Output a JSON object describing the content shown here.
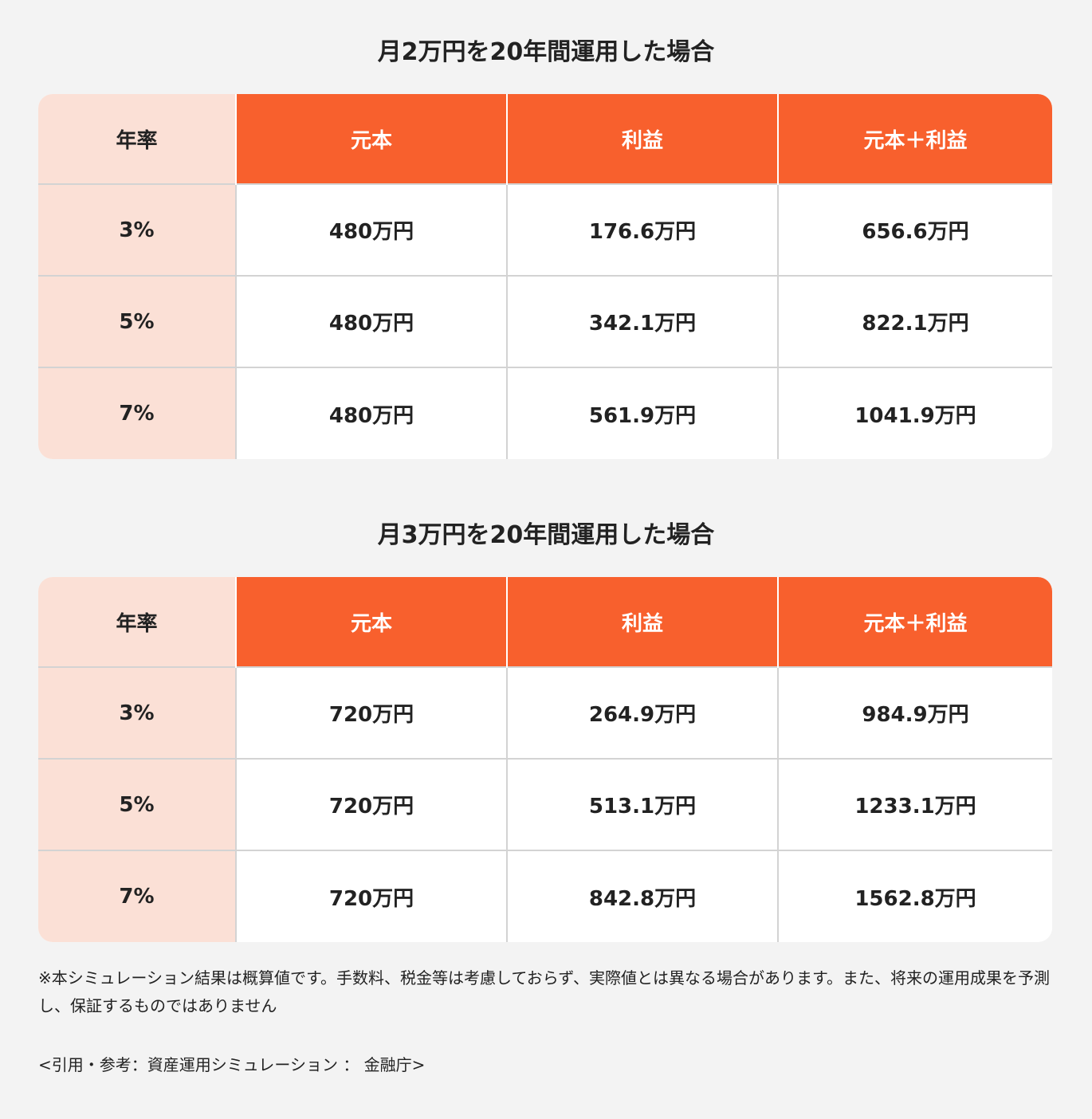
{
  "tables": [
    {
      "title": "月2万円を20年間運用した場合",
      "headers": [
        "年率",
        "元本",
        "利益",
        "元本＋利益"
      ],
      "rows": [
        [
          "3%",
          "480万円",
          "176.6万円",
          "656.6万円"
        ],
        [
          "5%",
          "480万円",
          "342.1万円",
          "822.1万円"
        ],
        [
          "7%",
          "480万円",
          "561.9万円",
          "1041.9万円"
        ]
      ]
    },
    {
      "title": "月3万円を20年間運用した場合",
      "headers": [
        "年率",
        "元本",
        "利益",
        "元本＋利益"
      ],
      "rows": [
        [
          "3%",
          "720万円",
          "264.9万円",
          "984.9万円"
        ],
        [
          "5%",
          "720万円",
          "513.1万円",
          "1233.1万円"
        ],
        [
          "7%",
          "720万円",
          "842.8万円",
          "1562.8万円"
        ]
      ]
    }
  ],
  "note": "※本シミュレーション結果は概算値です。手数料、税金等は考慮しておらず、実際値とは異なる場合があります。また、将来の運用成果を予測し、保証するものではありません",
  "source": "<引用・参考：資産運用シミュレーション ： 金融庁>",
  "colors": {
    "background": "#f3f3f3",
    "header_accent": "#f8602d",
    "rate_column": "#fbe0d6",
    "grid_line": "#d3d3d3"
  }
}
